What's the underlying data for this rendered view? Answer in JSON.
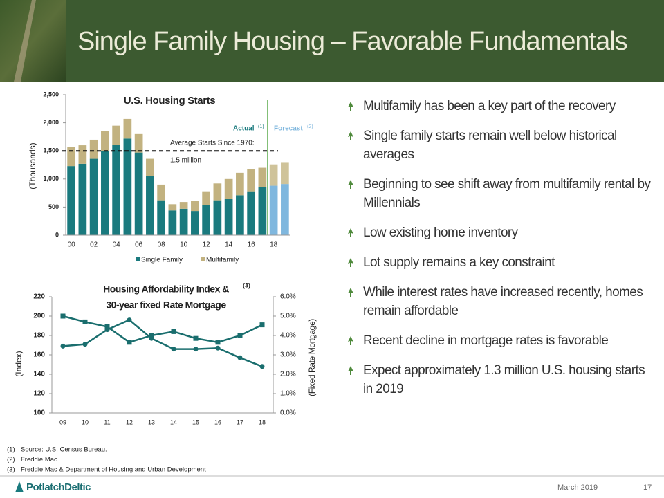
{
  "header": {
    "title": "Single Family Housing – Favorable Fundamentals"
  },
  "chart_data": [
    {
      "type": "bar",
      "stacked": true,
      "title": "U.S. Housing Starts",
      "y_label": "(Thousands)",
      "categories": [
        "00",
        null,
        "02",
        null,
        "04",
        null,
        "06",
        null,
        "08",
        null,
        "10",
        null,
        "12",
        null,
        "14",
        null,
        "16",
        null,
        "18",
        null
      ],
      "series": [
        {
          "name": "Single Family",
          "color": "#1a7a7e",
          "colors": [
            "#1a7a7e",
            "#1a7a7e",
            "#1a7a7e",
            "#1a7a7e",
            "#1a7a7e",
            "#1a7a7e",
            "#1a7a7e",
            "#1a7a7e",
            "#1a7a7e",
            "#1a7a7e",
            "#1a7a7e",
            "#1a7a7e",
            "#1a7a7e",
            "#1a7a7e",
            "#1a7a7e",
            "#1a7a7e",
            "#1a7a7e",
            "#1a7a7e",
            "#7fb7de",
            "#7fb7de"
          ],
          "values": [
            1230,
            1270,
            1360,
            1500,
            1610,
            1720,
            1470,
            1050,
            620,
            440,
            470,
            430,
            540,
            620,
            650,
            710,
            780,
            850,
            880,
            910
          ]
        },
        {
          "name": "Multifamily",
          "color": "#c2b280",
          "colors": [
            "#c2b280",
            "#c2b280",
            "#c2b280",
            "#c2b280",
            "#c2b280",
            "#c2b280",
            "#c2b280",
            "#c2b280",
            "#c2b280",
            "#c2b280",
            "#c2b280",
            "#c2b280",
            "#c2b280",
            "#c2b280",
            "#c2b280",
            "#c2b280",
            "#c2b280",
            "#c2b280",
            "#cfc39a",
            "#cfc39a"
          ],
          "values": [
            340,
            330,
            340,
            350,
            340,
            350,
            330,
            310,
            280,
            110,
            120,
            180,
            240,
            300,
            350,
            400,
            390,
            350,
            380,
            390
          ]
        }
      ],
      "ylim": [
        0,
        2500
      ],
      "yticks": [
        0,
        500,
        {
          "value": 1000,
          "label": "1,000"
        },
        {
          "value": 1500,
          "label": "1,500"
        },
        {
          "value": 2000,
          "label": "2,000"
        },
        {
          "value": 2500,
          "label": "2,500"
        }
      ],
      "reference_line": 1500,
      "reference_label": [
        "Average Starts Since 1970:",
        "1.5 million"
      ],
      "actual_label": "Actual",
      "actual_note": "(1)",
      "forecast_label": "Forecast",
      "forecast_note": "(2)",
      "legend": "bottom"
    },
    {
      "type": "line",
      "title": "Housing Affordability Index &",
      "title_note": "(3)",
      "subtitle": "30-year fixed Rate Mortgage",
      "y_label": "(Index)",
      "y2_label": "(Fixed Rate Mortgage)",
      "categories": [
        "09",
        "10",
        "11",
        "12",
        "13",
        "14",
        "15",
        "16",
        "17",
        "18"
      ],
      "series": [
        {
          "name": "Housing Affordability Index",
          "color": "#1a6e6e",
          "marker": "circle",
          "values": [
            169,
            171,
            186,
            196,
            177,
            166,
            166,
            167,
            157,
            148
          ]
        },
        {
          "name": "30-year fixed Rate Mortgage",
          "color": "#1a6e6e",
          "marker": "square",
          "axis": "y2",
          "values": [
            5.0,
            4.7,
            4.45,
            3.65,
            4.0,
            4.2,
            3.85,
            3.65,
            4.0,
            4.55
          ]
        }
      ],
      "ylim": [
        100,
        220
      ],
      "yticks": [
        100,
        120,
        140,
        160,
        180,
        200,
        220
      ],
      "y2lim": [
        0,
        6
      ],
      "y2ticks": [
        {
          "value": 0,
          "label": "0.0%"
        },
        {
          "value": 1,
          "label": "1.0%"
        },
        {
          "value": 2,
          "label": "2.0%"
        },
        {
          "value": 3,
          "label": "3.0%"
        },
        {
          "value": 4,
          "label": "4.0%"
        },
        {
          "value": 5,
          "label": "5.0%"
        },
        {
          "value": 6,
          "label": "6.0%"
        }
      ]
    }
  ],
  "bullets": [
    "Multifamily has been a key part of the recovery",
    "Single family starts remain well below historical averages",
    "Beginning to see shift away from multifamily rental by Millennials",
    "Low existing home inventory",
    "Lot supply remains a key constraint",
    "While interest rates have increased recently, homes remain affordable",
    "Recent decline in mortgage rates is favorable",
    "Expect approximately 1.3 million U.S. housing starts in 2019"
  ],
  "footnotes": [
    {
      "marker": "(1)",
      "text": "Source:  U.S. Census Bureau."
    },
    {
      "marker": "(2)",
      "text": "Freddie  Mac"
    },
    {
      "marker": "(3)",
      "text": "Freddie  Mac & Department  of Housing and Urban Development"
    }
  ],
  "footer": {
    "logo": "PotlatchDeltic",
    "date": "March 2019",
    "page": "17"
  }
}
